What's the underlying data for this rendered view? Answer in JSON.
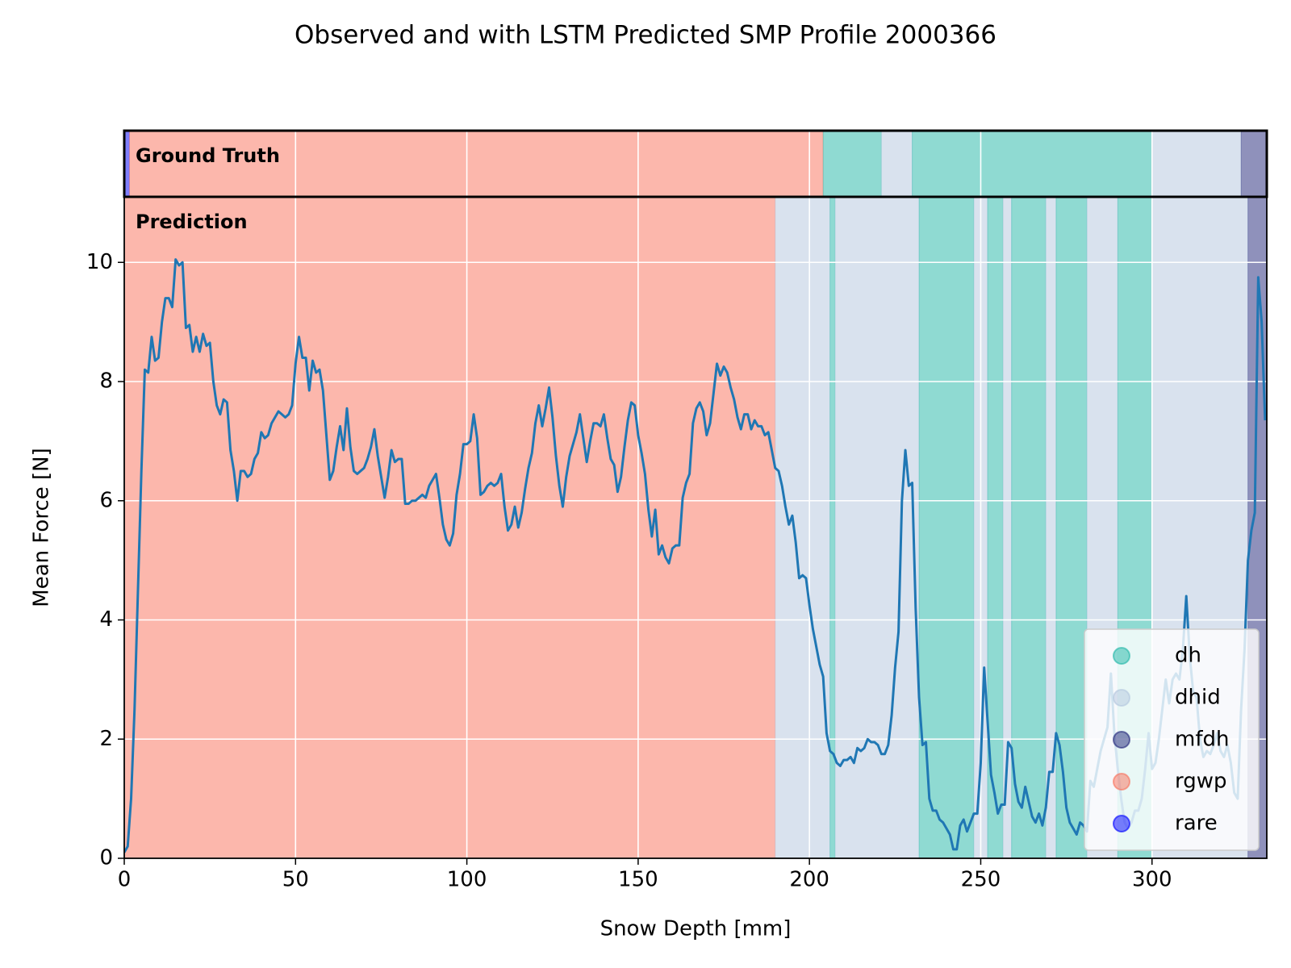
{
  "chart_data": {
    "type": "line",
    "title": "Observed and with LSTM Predicted SMP Profile 2000366",
    "xlabel": "Snow Depth [mm]",
    "ylabel": "Mean Force [N]",
    "ground_truth_label": "Ground Truth",
    "prediction_label": "Prediction",
    "xlim": [
      0,
      333.5
    ],
    "ylim": [
      0,
      11.1
    ],
    "xticks": [
      0,
      50,
      100,
      150,
      200,
      250,
      300
    ],
    "yticks": [
      0,
      2,
      4,
      6,
      8,
      10
    ],
    "grid": true,
    "legend": "lower right",
    "color": "#1f77b4",
    "classes": [
      {
        "name": "dh",
        "color": "#1fb5a6"
      },
      {
        "name": "dhid",
        "color": "#b3c6de"
      },
      {
        "name": "mfdh",
        "color": "#1f2378"
      },
      {
        "name": "rgwp",
        "color": "#f96f5a"
      },
      {
        "name": "rare",
        "color": "#0000ff"
      }
    ],
    "ground_truth": [
      {
        "label": "rare",
        "start": 0,
        "end": 1.5
      },
      {
        "label": "rgwp",
        "start": 1.5,
        "end": 204
      },
      {
        "label": "dh",
        "start": 204,
        "end": 221
      },
      {
        "label": "dhid",
        "start": 221,
        "end": 230
      },
      {
        "label": "dh",
        "start": 230,
        "end": 300
      },
      {
        "label": "dhid",
        "start": 300,
        "end": 326
      },
      {
        "label": "mfdh",
        "start": 326,
        "end": 333.5
      }
    ],
    "prediction": [
      {
        "label": "rgwp",
        "start": 0,
        "end": 190
      },
      {
        "label": "dhid",
        "start": 190,
        "end": 206
      },
      {
        "label": "dh",
        "start": 206,
        "end": 207.5
      },
      {
        "label": "dhid",
        "start": 207.5,
        "end": 232
      },
      {
        "label": "dh",
        "start": 232,
        "end": 248
      },
      {
        "label": "dhid",
        "start": 248,
        "end": 252
      },
      {
        "label": "dh",
        "start": 252,
        "end": 256.5
      },
      {
        "label": "dhid",
        "start": 256.5,
        "end": 259
      },
      {
        "label": "dh",
        "start": 259,
        "end": 269
      },
      {
        "label": "dhid",
        "start": 269,
        "end": 272
      },
      {
        "label": "dh",
        "start": 272,
        "end": 281
      },
      {
        "label": "dhid",
        "start": 281,
        "end": 290
      },
      {
        "label": "dh",
        "start": 290,
        "end": 300
      },
      {
        "label": "dhid",
        "start": 300,
        "end": 328
      },
      {
        "label": "mfdh",
        "start": 328,
        "end": 333.5
      }
    ],
    "x": [
      0,
      1,
      2,
      3,
      4,
      5,
      6,
      7,
      8,
      9,
      10,
      11,
      12,
      13,
      14,
      15,
      16,
      17,
      18,
      19,
      20,
      21,
      22,
      23,
      24,
      25,
      26,
      27,
      28,
      29,
      30,
      31,
      32,
      33,
      34,
      35,
      36,
      37,
      38,
      39,
      40,
      41,
      42,
      43,
      44,
      45,
      46,
      47,
      48,
      49,
      50,
      51,
      52,
      53,
      54,
      55,
      56,
      57,
      58,
      59,
      60,
      61,
      62,
      63,
      64,
      65,
      66,
      67,
      68,
      69,
      70,
      71,
      72,
      73,
      74,
      75,
      76,
      77,
      78,
      79,
      80,
      81,
      82,
      83,
      84,
      85,
      86,
      87,
      88,
      89,
      90,
      91,
      92,
      93,
      94,
      95,
      96,
      97,
      98,
      99,
      100,
      101,
      102,
      103,
      104,
      105,
      106,
      107,
      108,
      109,
      110,
      111,
      112,
      113,
      114,
      115,
      116,
      117,
      118,
      119,
      120,
      121,
      122,
      123,
      124,
      125,
      126,
      127,
      128,
      129,
      130,
      131,
      132,
      133,
      134,
      135,
      136,
      137,
      138,
      139,
      140,
      141,
      142,
      143,
      144,
      145,
      146,
      147,
      148,
      149,
      150,
      151,
      152,
      153,
      154,
      155,
      156,
      157,
      158,
      159,
      160,
      161,
      162,
      163,
      164,
      165,
      166,
      167,
      168,
      169,
      170,
      171,
      172,
      173,
      174,
      175,
      176,
      177,
      178,
      179,
      180,
      181,
      182,
      183,
      184,
      185,
      186,
      187,
      188,
      189,
      190,
      191,
      192,
      193,
      194,
      195,
      196,
      197,
      198,
      199,
      200,
      201,
      202,
      203,
      204,
      205,
      206,
      207,
      208,
      209,
      210,
      211,
      212,
      213,
      214,
      215,
      216,
      217,
      218,
      219,
      220,
      221,
      222,
      223,
      224,
      225,
      226,
      227,
      228,
      229,
      230,
      231,
      232,
      233,
      234,
      235,
      236,
      237,
      238,
      239,
      240,
      241,
      242,
      243,
      244,
      245,
      246,
      247,
      248,
      249,
      250,
      251,
      252,
      253,
      254,
      255,
      256,
      257,
      258,
      259,
      260,
      261,
      262,
      263,
      264,
      265,
      266,
      267,
      268,
      269,
      270,
      271,
      272,
      273,
      274,
      275,
      276,
      277,
      278,
      279,
      280,
      281,
      282,
      283,
      284,
      285,
      286,
      287,
      288,
      289,
      290,
      291,
      292,
      293,
      294,
      295,
      296,
      297,
      298,
      299,
      300,
      301,
      302,
      303,
      304,
      305,
      306,
      307,
      308,
      309,
      310,
      311,
      312,
      313,
      314,
      315,
      316,
      317,
      318,
      319,
      320,
      321,
      322,
      323,
      324,
      325,
      326,
      327,
      328,
      329,
      330,
      331,
      332,
      333
    ],
    "values": [
      0.1,
      0.2,
      1.0,
      2.5,
      4.5,
      6.5,
      8.2,
      8.15,
      8.75,
      8.35,
      8.4,
      9.0,
      9.4,
      9.4,
      9.25,
      10.05,
      9.95,
      10.0,
      8.9,
      8.95,
      8.5,
      8.75,
      8.5,
      8.8,
      8.6,
      8.65,
      8.0,
      7.6,
      7.45,
      7.7,
      7.65,
      6.85,
      6.5,
      6.0,
      6.5,
      6.5,
      6.4,
      6.45,
      6.7,
      6.8,
      7.15,
      7.05,
      7.1,
      7.3,
      7.4,
      7.5,
      7.45,
      7.4,
      7.45,
      7.6,
      8.3,
      8.75,
      8.4,
      8.4,
      7.85,
      8.35,
      8.15,
      8.2,
      7.85,
      7.1,
      6.35,
      6.5,
      6.9,
      7.25,
      6.85,
      7.55,
      6.9,
      6.5,
      6.45,
      6.5,
      6.55,
      6.7,
      6.9,
      7.2,
      6.75,
      6.4,
      6.05,
      6.4,
      6.85,
      6.65,
      6.7,
      6.7,
      5.95,
      5.95,
      6.0,
      6.0,
      6.05,
      6.1,
      6.05,
      6.25,
      6.35,
      6.45,
      6.05,
      5.6,
      5.35,
      5.25,
      5.45,
      6.1,
      6.45,
      6.95,
      6.95,
      7.0,
      7.45,
      7.05,
      6.1,
      6.15,
      6.25,
      6.3,
      6.25,
      6.3,
      6.45,
      5.9,
      5.5,
      5.6,
      5.9,
      5.55,
      5.8,
      6.2,
      6.55,
      6.8,
      7.3,
      7.6,
      7.25,
      7.55,
      7.9,
      7.4,
      6.75,
      6.25,
      5.9,
      6.4,
      6.75,
      6.95,
      7.15,
      7.45,
      7.05,
      6.65,
      7.0,
      7.3,
      7.3,
      7.25,
      7.45,
      7.05,
      6.7,
      6.6,
      6.15,
      6.4,
      6.9,
      7.35,
      7.65,
      7.6,
      7.1,
      6.8,
      6.45,
      5.85,
      5.4,
      5.85,
      5.1,
      5.25,
      5.05,
      4.95,
      5.2,
      5.25,
      5.25,
      6.05,
      6.3,
      6.45,
      7.3,
      7.55,
      7.65,
      7.5,
      7.1,
      7.3,
      7.8,
      8.3,
      8.1,
      8.25,
      8.15,
      7.9,
      7.7,
      7.4,
      7.2,
      7.45,
      7.45,
      7.2,
      7.35,
      7.25,
      7.25,
      7.1,
      7.15,
      6.85,
      6.55,
      6.5,
      6.25,
      5.9,
      5.6,
      5.75,
      5.3,
      4.7,
      4.75,
      4.7,
      4.25,
      3.85,
      3.55,
      3.25,
      3.05,
      2.1,
      1.8,
      1.75,
      1.6,
      1.55,
      1.65,
      1.65,
      1.7,
      1.6,
      1.85,
      1.8,
      1.85,
      2.0,
      1.95,
      1.95,
      1.9,
      1.75,
      1.75,
      1.9,
      2.4,
      3.2,
      3.8,
      6.0,
      6.85,
      6.25,
      6.3,
      4.2,
      2.7,
      1.9,
      1.95,
      1.0,
      0.8,
      0.8,
      0.65,
      0.6,
      0.5,
      0.4,
      0.15,
      0.15,
      0.55,
      0.65,
      0.45,
      0.6,
      0.75,
      0.75,
      1.6,
      3.2,
      2.3,
      1.4,
      1.1,
      0.75,
      0.9,
      0.9,
      1.95,
      1.85,
      1.25,
      0.95,
      0.85,
      1.2,
      0.95,
      0.7,
      0.6,
      0.75,
      0.55,
      0.85,
      1.45,
      1.45,
      2.1,
      1.9,
      1.45,
      0.85,
      0.6,
      0.5,
      0.4,
      0.6,
      0.55,
      0.45,
      1.3,
      1.2,
      1.5,
      1.8,
      2.0,
      2.2,
      3.1,
      2.1,
      1.5,
      1.0,
      0.6,
      0.5,
      0.6,
      0.8,
      0.8,
      1.0,
      1.5,
      2.1,
      1.5,
      1.6,
      2.0,
      2.5,
      3.0,
      2.6,
      3.0,
      3.1,
      3.0,
      3.5,
      4.4,
      3.4,
      2.8,
      2.7,
      2.0,
      1.7,
      1.8,
      1.75,
      1.9,
      2.1,
      1.8,
      1.7,
      1.9,
      1.6,
      1.1,
      1.0,
      2.5,
      3.5,
      5.0,
      5.5,
      5.8,
      9.75,
      9.0,
      7.35
    ]
  }
}
